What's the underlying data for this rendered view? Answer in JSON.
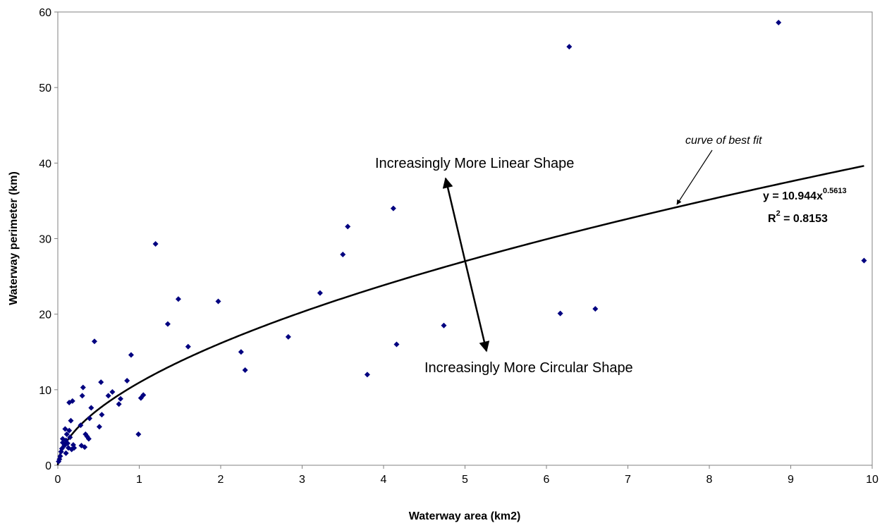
{
  "chart_data": {
    "type": "scatter",
    "title": "",
    "xlabel": "Waterway area (km2)",
    "ylabel": "Waterway perimeter (km)",
    "xlim": [
      0,
      10
    ],
    "ylim": [
      0,
      60
    ],
    "x_ticks": [
      "0",
      "1",
      "2",
      "3",
      "4",
      "5",
      "6",
      "7",
      "8",
      "9",
      "10"
    ],
    "y_ticks": [
      "0",
      "10",
      "20",
      "30",
      "40",
      "50",
      "60"
    ],
    "grid": false,
    "legend": "none",
    "marker_color": "#000080",
    "series": [
      {
        "points": [
          [
            0.01,
            0.5
          ],
          [
            0.02,
            0.8
          ],
          [
            0.03,
            1.2
          ],
          [
            0.04,
            1.8
          ],
          [
            0.05,
            2.2
          ],
          [
            0.06,
            3.0
          ],
          [
            0.06,
            3.5
          ],
          [
            0.08,
            2.6
          ],
          [
            0.09,
            4.8
          ],
          [
            0.1,
            3.3
          ],
          [
            0.1,
            1.6
          ],
          [
            0.11,
            4.1
          ],
          [
            0.12,
            2.9
          ],
          [
            0.13,
            2.3
          ],
          [
            0.14,
            8.3
          ],
          [
            0.14,
            4.6
          ],
          [
            0.15,
            3.7
          ],
          [
            0.16,
            5.9
          ],
          [
            0.17,
            2.1
          ],
          [
            0.18,
            8.5
          ],
          [
            0.19,
            2.7
          ],
          [
            0.2,
            2.3
          ],
          [
            0.28,
            5.3
          ],
          [
            0.29,
            2.6
          ],
          [
            0.3,
            9.2
          ],
          [
            0.31,
            10.3
          ],
          [
            0.33,
            2.4
          ],
          [
            0.34,
            4.1
          ],
          [
            0.36,
            3.8
          ],
          [
            0.38,
            3.5
          ],
          [
            0.39,
            6.2
          ],
          [
            0.41,
            7.6
          ],
          [
            0.45,
            16.4
          ],
          [
            0.51,
            5.1
          ],
          [
            0.53,
            11.0
          ],
          [
            0.54,
            6.7
          ],
          [
            0.62,
            9.2
          ],
          [
            0.67,
            9.7
          ],
          [
            0.75,
            8.1
          ],
          [
            0.77,
            8.8
          ],
          [
            0.85,
            11.2
          ],
          [
            0.9,
            14.6
          ],
          [
            0.99,
            4.1
          ],
          [
            1.02,
            8.9
          ],
          [
            1.05,
            9.3
          ],
          [
            1.2,
            29.3
          ],
          [
            1.35,
            18.7
          ],
          [
            1.48,
            22.0
          ],
          [
            1.6,
            15.7
          ],
          [
            1.97,
            21.7
          ],
          [
            2.25,
            15.0
          ],
          [
            2.3,
            12.6
          ],
          [
            2.83,
            17.0
          ],
          [
            3.22,
            22.8
          ],
          [
            3.5,
            27.9
          ],
          [
            3.56,
            31.6
          ],
          [
            3.8,
            12.0
          ],
          [
            4.12,
            34.0
          ],
          [
            4.16,
            16.0
          ],
          [
            4.74,
            18.5
          ],
          [
            6.17,
            20.1
          ],
          [
            6.28,
            55.4
          ],
          [
            6.6,
            20.7
          ],
          [
            8.85,
            58.6
          ],
          [
            9.9,
            27.1
          ]
        ]
      }
    ],
    "trendline": {
      "type": "power",
      "a": 10.944,
      "b": 0.5613,
      "x_range": [
        0,
        9.9
      ]
    },
    "annotations": {
      "linear_label": "Increasingly More Linear Shape",
      "circular_label": "Increasingly More Circular Shape",
      "fit_label": "curve of best fit",
      "equation_prefix": "y = 10.944x",
      "equation_exponent": "0.5613",
      "r2_prefix": "R",
      "r2_exponent": "2",
      "r2_suffix": " = 0.8153"
    }
  }
}
